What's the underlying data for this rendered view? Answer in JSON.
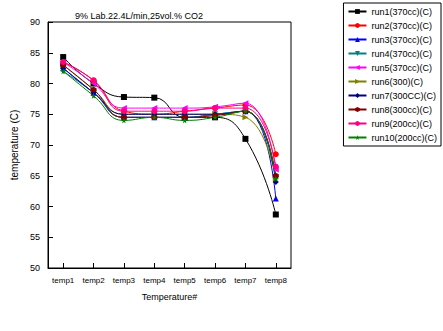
{
  "chart_data": {
    "type": "line",
    "title": "9% Lab.22.4L/min,25vol.% CO2",
    "xlabel": "Temperature#",
    "ylabel": "temperature (C)",
    "categories": [
      "temp1",
      "temp2",
      "temp3",
      "temp4",
      "temp5",
      "temp6",
      "temp7",
      "temp8"
    ],
    "series": [
      {
        "name": "run1(370cc)(C)",
        "color": "#000000",
        "marker": "square",
        "line_style": "solid",
        "values": [
          84.3,
          80.0,
          77.8,
          77.7,
          74.5,
          74.5,
          71.0,
          58.7
        ]
      },
      {
        "name": "run2(370cc)(C)",
        "color": "#ff0000",
        "marker": "circle",
        "line_style": "solid",
        "values": [
          83.5,
          80.5,
          75.5,
          75.0,
          75.5,
          76.0,
          76.5,
          68.5
        ]
      },
      {
        "name": "run3(370cc)(C)",
        "color": "#0000ff",
        "marker": "triangle",
        "line_style": "solid",
        "values": [
          82.5,
          78.5,
          74.5,
          74.5,
          74.5,
          75.0,
          75.5,
          61.3
        ]
      },
      {
        "name": "run4(370cc)(C)",
        "color": "#008080",
        "marker": "triangle-down",
        "line_style": "solid",
        "values": [
          82.0,
          78.5,
          74.5,
          74.5,
          74.5,
          75.0,
          75.5,
          64.5
        ]
      },
      {
        "name": "run5(370cc)(C)",
        "color": "#ff00ff",
        "marker": "triangle-left",
        "line_style": "solid",
        "values": [
          83.5,
          80.0,
          76.0,
          76.0,
          76.0,
          76.2,
          76.8,
          66.0
        ]
      },
      {
        "name": "run6(300)(C)",
        "color": "#808000",
        "marker": "triangle-right",
        "line_style": "solid",
        "values": [
          83.0,
          79.0,
          75.0,
          75.0,
          75.0,
          75.0,
          74.5,
          64.5
        ]
      },
      {
        "name": "run7(300CC)(C)",
        "color": "#000080",
        "marker": "diamond",
        "line_style": "solid",
        "values": [
          82.5,
          78.5,
          75.0,
          75.0,
          75.0,
          75.0,
          75.5,
          64.0
        ]
      },
      {
        "name": "run8(300cc)(C)",
        "color": "#800000",
        "marker": "hexagon",
        "line_style": "solid",
        "values": [
          83.0,
          79.0,
          74.5,
          74.5,
          74.5,
          74.8,
          75.5,
          65.0
        ]
      },
      {
        "name": "run9(200cc)(C)",
        "color": "#ff0080",
        "marker": "circle",
        "line_style": "solid",
        "values": [
          83.5,
          80.5,
          75.5,
          75.5,
          75.5,
          76.0,
          76.0,
          66.5
        ]
      },
      {
        "name": "run10(200cc)(C)",
        "color": "#008000",
        "marker": "star",
        "line_style": "solid",
        "values": [
          82.0,
          78.0,
          74.0,
          74.5,
          74.0,
          74.5,
          75.5,
          64.5
        ]
      }
    ],
    "ylim": [
      50,
      90
    ],
    "yticks": [
      50,
      55,
      60,
      65,
      70,
      75,
      80,
      85,
      90
    ],
    "grid": false,
    "legend": "upper right"
  }
}
